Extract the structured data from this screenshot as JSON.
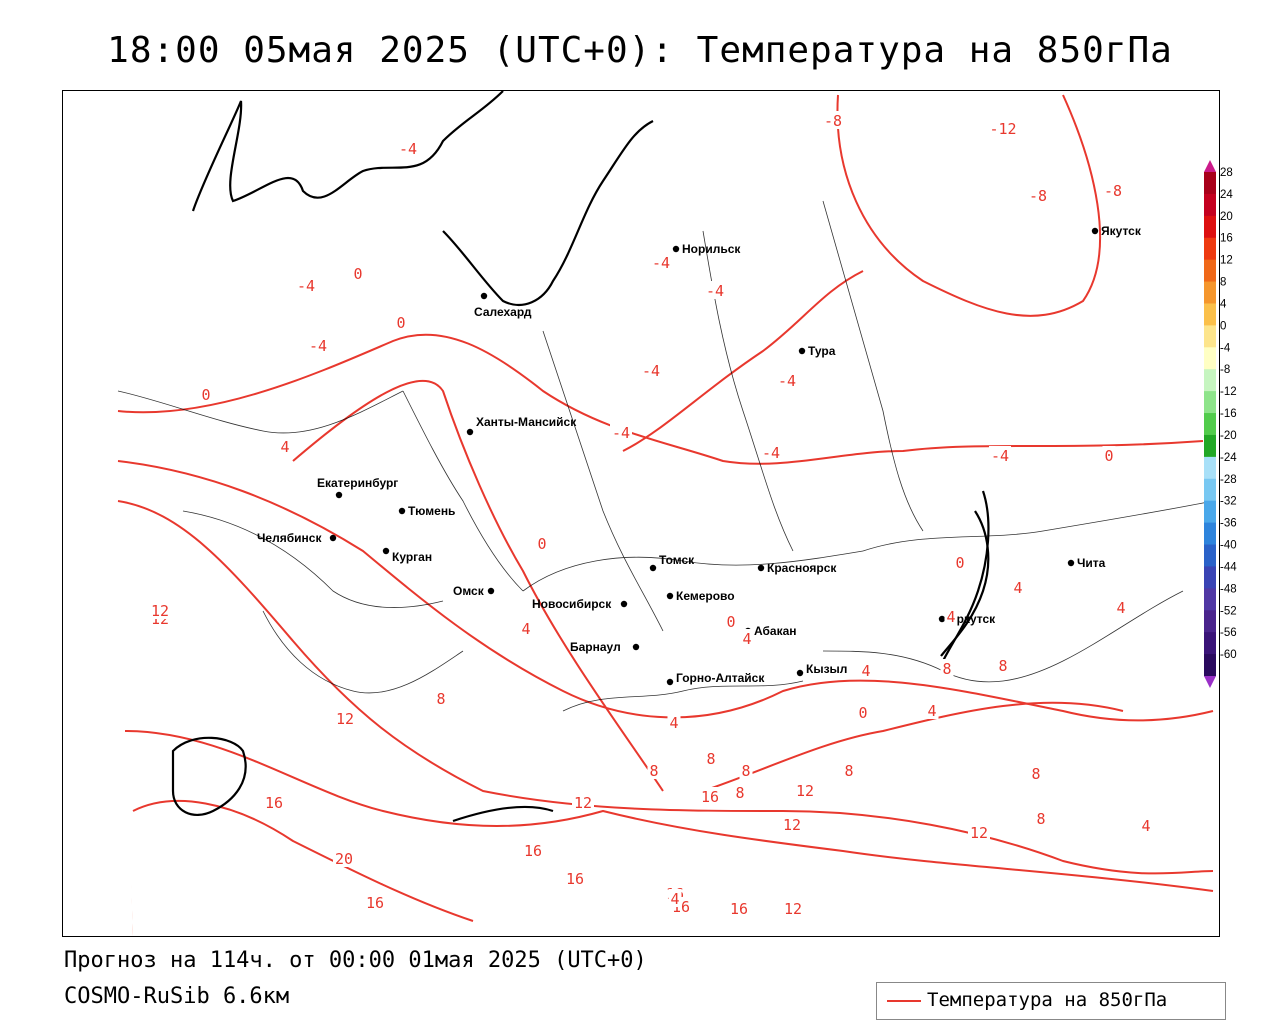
{
  "title": "18:00 05мая 2025 (UTC+0): Температура на 850гПа",
  "forecast_line": "Прогноз на 114ч. от 00:00 01мая 2025 (UTC+0)",
  "model_line": "COSMO-RuSib 6.6км",
  "legend": {
    "label": "Температура на 850гПа",
    "line_color": "#e8382e"
  },
  "colorbar": {
    "labels": [
      "28",
      "24",
      "20",
      "16",
      "12",
      "8",
      "4",
      "0",
      "-4",
      "-8",
      "-12",
      "-16",
      "-20",
      "-24",
      "-28",
      "-32",
      "-36",
      "-40",
      "-44",
      "-48",
      "-52",
      "-56",
      "-60"
    ],
    "colors": [
      "#a8001a",
      "#c4001f",
      "#dd1010",
      "#ee3a10",
      "#f06818",
      "#f5962c",
      "#fbc04a",
      "#fde58c",
      "#ffffc4",
      "#c6f5c0",
      "#8ee48a",
      "#52cc4c",
      "#22a826",
      "#a8e0f8",
      "#78c8f2",
      "#4aa8ea",
      "#2e84dc",
      "#2a62c8",
      "#3a44b4",
      "#5038a4",
      "#4a248c",
      "#3a1478",
      "#2a0a5e"
    ],
    "top_arrow_color": "#cc1a8a",
    "bottom_arrow_color": "#9a30c8"
  },
  "cities": [
    {
      "name": "Норильск"
    },
    {
      "name": "Якутск"
    },
    {
      "name": "Салехард"
    },
    {
      "name": "Тура"
    },
    {
      "name": "Ханты-Мансийск"
    },
    {
      "name": "Екатеринбург"
    },
    {
      "name": "Тюмень"
    },
    {
      "name": "Челябинск"
    },
    {
      "name": "Курган"
    },
    {
      "name": "Омск"
    },
    {
      "name": "Новосибирск"
    },
    {
      "name": "Томск"
    },
    {
      "name": "Кемерово"
    },
    {
      "name": "Красноярск"
    },
    {
      "name": "Абакан"
    },
    {
      "name": "Барнаул"
    },
    {
      "name": "Горно-Алтайск"
    },
    {
      "name": "Кызыл"
    },
    {
      "name": "Иркутск"
    },
    {
      "name": "Чита"
    }
  ],
  "isotherm_labels": [
    "-4",
    "-8",
    "-12",
    "-8",
    "-8",
    "-4",
    "-4",
    "-4",
    "0",
    "-4",
    "0",
    "-4",
    "-4",
    "-4",
    "-4",
    "-4",
    "0",
    "4",
    "0",
    "4",
    "4",
    "0",
    "4",
    "0",
    "4",
    "8",
    "12",
    "8",
    "12",
    "16",
    "20",
    "16",
    "12",
    "16",
    "8",
    "8",
    "8",
    "12",
    "12",
    "16",
    "16",
    "16",
    "12",
    "16",
    "16",
    "8",
    "8",
    "12",
    "4",
    "4",
    "4",
    "8",
    "4",
    "0",
    "4",
    "0",
    "8",
    "8",
    "4",
    "12"
  ]
}
